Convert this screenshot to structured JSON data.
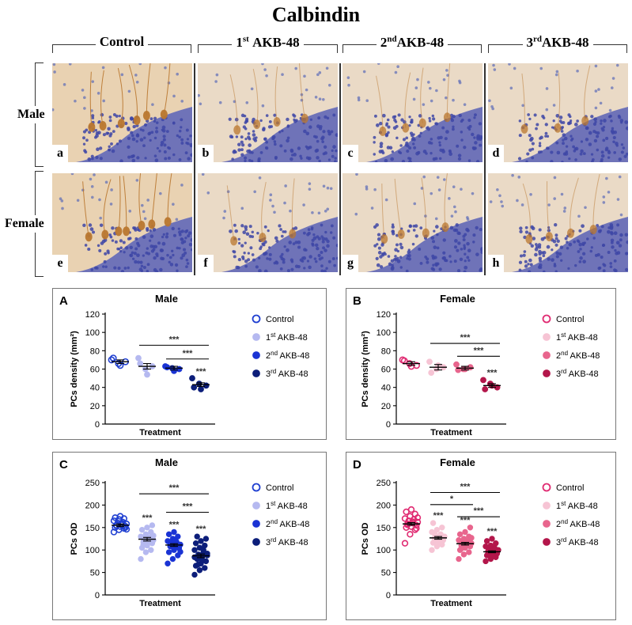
{
  "figure_title": "Calbindin",
  "columns": [
    {
      "main": "Control",
      "sup": ""
    },
    {
      "main": "AKB-48",
      "sup": "st",
      "num": "1"
    },
    {
      "main": "AKB-48",
      "sup": "nd",
      "num": "2"
    },
    {
      "main": "AKB-48",
      "sup": "rd",
      "num": "3"
    }
  ],
  "rows": [
    "Male",
    "Female"
  ],
  "micrograph_letters": [
    "a",
    "b",
    "c",
    "d",
    "e",
    "f",
    "g",
    "h"
  ],
  "colors": {
    "male": [
      "#1f3fd1",
      "#b5b9f0",
      "#1a33d4",
      "#0c1e7a"
    ],
    "female": [
      "#e02b72",
      "#f6c4d4",
      "#e8658d",
      "#b3164a"
    ],
    "stain_brown": "#b9772f",
    "nuclei": "#3e47a6"
  },
  "chart_data": [
    {
      "panel": "A",
      "title": "Male",
      "type": "scatter",
      "ylabel": "PCs density (mm²)",
      "xlabel": "Treatment",
      "yticks": [
        "0",
        "20",
        "40",
        "60",
        "80",
        "100",
        "120"
      ],
      "ylim": [
        0,
        120
      ],
      "legend": [
        "Control",
        "1st AKB-48",
        "2nd AKB-48",
        "3rd AKB-48"
      ],
      "palette": "male",
      "series": [
        {
          "name": "Control",
          "mean": 68,
          "sem": 2,
          "values": [
            70,
            66,
            68,
            72,
            64
          ],
          "hollow": true
        },
        {
          "name": "1st AKB-48",
          "mean": 63,
          "sem": 3,
          "values": [
            72,
            60,
            63,
            66,
            54
          ]
        },
        {
          "name": "2nd AKB-48",
          "mean": 61,
          "sem": 2,
          "values": [
            63,
            61,
            60,
            62,
            58
          ]
        },
        {
          "name": "3rd AKB-48",
          "mean": 43,
          "sem": 2,
          "values": [
            50,
            44,
            42,
            40,
            38
          ]
        }
      ],
      "stars_above": [
        "",
        "",
        "",
        "***"
      ],
      "brackets": [
        {
          "from": 1,
          "to": 3,
          "y": 86,
          "label": "***"
        },
        {
          "from": 2,
          "to": 3,
          "y": 71,
          "label": "***"
        }
      ]
    },
    {
      "panel": "B",
      "title": "Female",
      "type": "scatter",
      "ylabel": "PCs density (mm²)",
      "xlabel": "Treatment",
      "yticks": [
        "0",
        "20",
        "40",
        "60",
        "80",
        "100",
        "120"
      ],
      "ylim": [
        0,
        120
      ],
      "legend": [
        "Control",
        "1st AKB-48",
        "2nd AKB-48",
        "3rd AKB-48"
      ],
      "palette": "female",
      "series": [
        {
          "name": "Control",
          "mean": 66,
          "sem": 2,
          "values": [
            70,
            66,
            64,
            69,
            63
          ],
          "hollow": true
        },
        {
          "name": "1st AKB-48",
          "mean": 62,
          "sem": 3,
          "values": [
            68,
            60,
            62,
            56,
            64
          ]
        },
        {
          "name": "2nd AKB-48",
          "mean": 61,
          "sem": 2,
          "values": [
            65,
            60,
            62,
            59,
            60
          ]
        },
        {
          "name": "3rd AKB-48",
          "mean": 42,
          "sem": 2,
          "values": [
            48,
            44,
            40,
            38,
            42
          ]
        }
      ],
      "stars_above": [
        "",
        "",
        "",
        "***"
      ],
      "brackets": [
        {
          "from": 1,
          "to": 3,
          "y": 88,
          "label": "***"
        },
        {
          "from": 2,
          "to": 3,
          "y": 74,
          "label": "***"
        }
      ]
    },
    {
      "panel": "C",
      "title": "Male",
      "type": "scatter",
      "ylabel": "PCs OD",
      "xlabel": "Treatment",
      "yticks": [
        "0",
        "50",
        "100",
        "150",
        "200",
        "250"
      ],
      "ylim": [
        0,
        250
      ],
      "legend": [
        "Control",
        "1st AKB-48",
        "2nd AKB-48",
        "3rd AKB-48"
      ],
      "palette": "male",
      "series": [
        {
          "name": "Control",
          "mean": 155,
          "sem": 3,
          "values": [
            140,
            145,
            148,
            150,
            152,
            153,
            155,
            156,
            158,
            160,
            162,
            165,
            168,
            170,
            172,
            175,
            150,
            154,
            158,
            146
          ],
          "hollow": true
        },
        {
          "name": "1st AKB-48",
          "mean": 124,
          "sem": 4,
          "values": [
            80,
            95,
            100,
            105,
            110,
            115,
            118,
            120,
            122,
            125,
            128,
            130,
            135,
            140,
            145,
            150,
            155,
            112,
            126,
            132
          ]
        },
        {
          "name": "2nd AKB-48",
          "mean": 111,
          "sem": 3,
          "values": [
            70,
            80,
            88,
            95,
            100,
            104,
            108,
            110,
            112,
            115,
            118,
            120,
            125,
            130,
            135,
            140,
            106,
            113,
            122,
            96
          ]
        },
        {
          "name": "3rd AKB-48",
          "mean": 87,
          "sem": 4,
          "values": [
            45,
            55,
            60,
            65,
            70,
            75,
            80,
            85,
            88,
            90,
            95,
            100,
            105,
            110,
            115,
            120,
            125,
            130,
            78,
            92,
            68,
            100,
            84
          ]
        }
      ],
      "stars_above": [
        "",
        "***",
        "***",
        "***"
      ],
      "brackets": [
        {
          "from": 1,
          "to": 3,
          "y": 225,
          "label": "***"
        },
        {
          "from": 2,
          "to": 3,
          "y": 184,
          "label": "***"
        }
      ]
    },
    {
      "panel": "D",
      "title": "Female",
      "type": "scatter",
      "ylabel": "PCs OD",
      "xlabel": "Treatment",
      "yticks": [
        "0",
        "50",
        "100",
        "150",
        "200",
        "250"
      ],
      "ylim": [
        0,
        250
      ],
      "legend": [
        "Control",
        "1st AKB-48",
        "2nd AKB-48",
        "3rd AKB-48"
      ],
      "palette": "female",
      "series": [
        {
          "name": "Control",
          "mean": 158,
          "sem": 3,
          "values": [
            115,
            135,
            145,
            150,
            152,
            155,
            158,
            160,
            162,
            165,
            168,
            170,
            175,
            180,
            185,
            190,
            148,
            156,
            163,
            172
          ],
          "hollow": true
        },
        {
          "name": "1st AKB-48",
          "mean": 127,
          "sem": 3,
          "values": [
            100,
            108,
            112,
            116,
            120,
            124,
            126,
            128,
            130,
            132,
            135,
            140,
            145,
            150,
            160,
            118,
            122,
            137
          ]
        },
        {
          "name": "2nd AKB-48",
          "mean": 114,
          "sem": 3,
          "values": [
            80,
            90,
            95,
            100,
            105,
            108,
            110,
            112,
            115,
            118,
            120,
            122,
            125,
            130,
            135,
            140,
            150,
            103,
            117,
            127
          ]
        },
        {
          "name": "3rd AKB-48",
          "mean": 96,
          "sem": 2,
          "values": [
            75,
            80,
            84,
            88,
            90,
            93,
            95,
            97,
            100,
            102,
            105,
            108,
            110,
            115,
            120,
            125,
            92,
            98
          ]
        }
      ],
      "stars_above": [
        "",
        "***",
        "***",
        "***"
      ],
      "brackets": [
        {
          "from": 1,
          "to": 3,
          "y": 228,
          "label": "***"
        },
        {
          "from": 1,
          "to": 2,
          "y": 201,
          "label": "*"
        },
        {
          "from": 2,
          "to": 3,
          "y": 174,
          "label": "***"
        }
      ]
    }
  ]
}
